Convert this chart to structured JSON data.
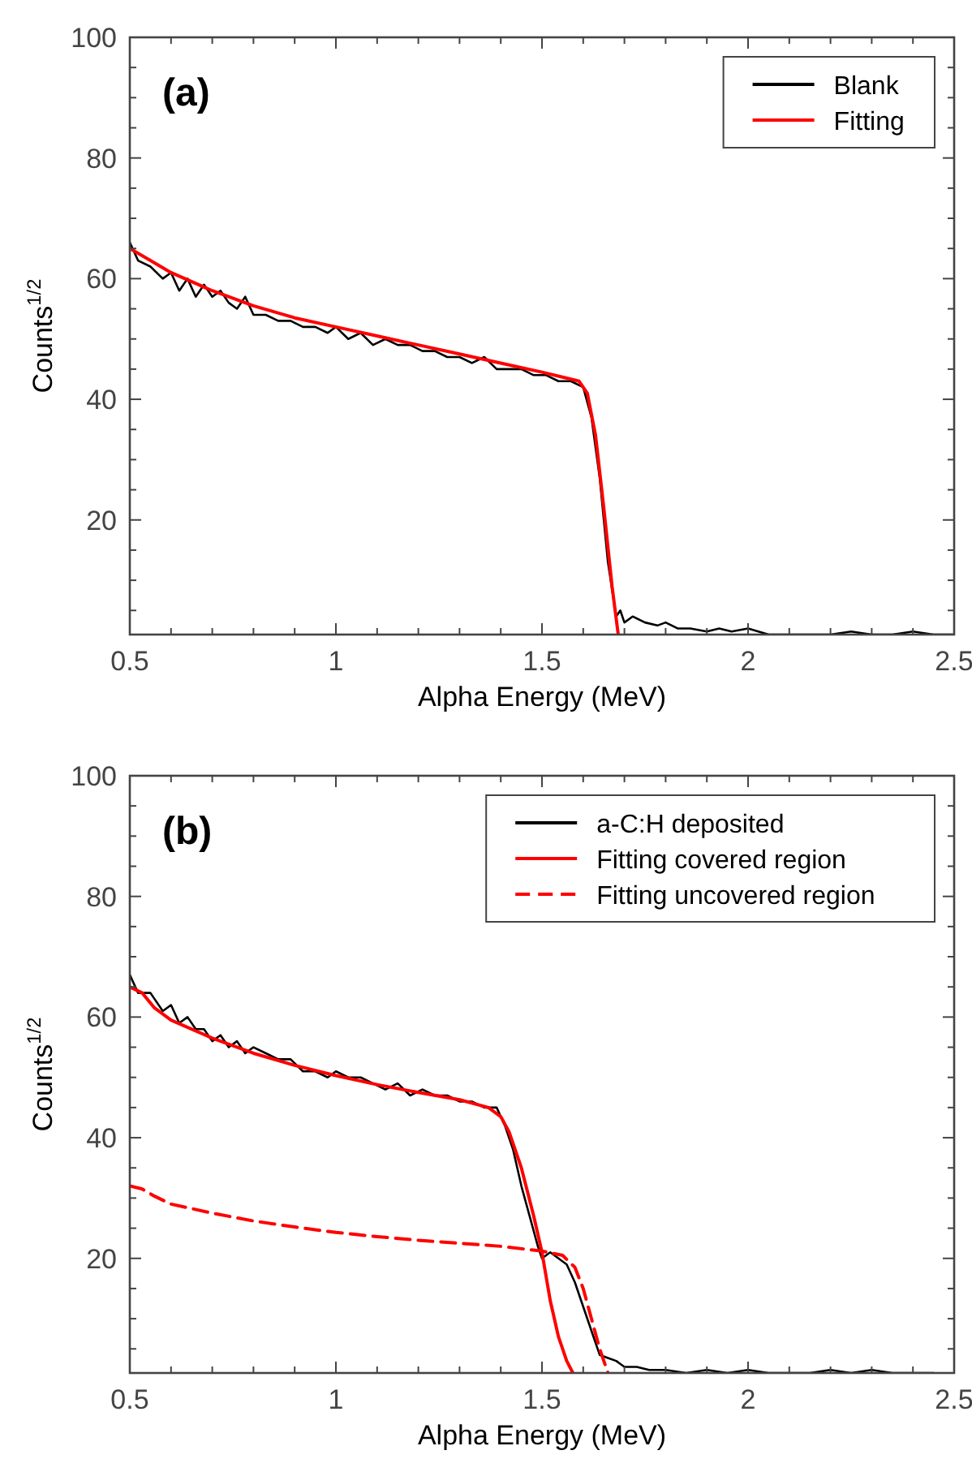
{
  "chart_data": [
    {
      "type": "line",
      "xlabel": "Alpha Energy (MeV)",
      "ylabel": "Counts$^{1/2}$",
      "annotations": [
        "(a)"
      ],
      "legend": "top right",
      "grid": false,
      "xlim": [
        0.5,
        2.5
      ],
      "ylim": [
        1,
        100
      ],
      "xticks": [
        0.5,
        {
          "value": 0.6,
          "label": null
        },
        {
          "value": 0.7,
          "label": null
        },
        {
          "value": 0.8,
          "label": null
        },
        {
          "value": 0.9,
          "label": null
        },
        1,
        {
          "value": 1.1,
          "label": null
        },
        {
          "value": 1.2,
          "label": null
        },
        {
          "value": 1.3,
          "label": null
        },
        {
          "value": 1.4,
          "label": null
        },
        1.5,
        {
          "value": 1.6,
          "label": null
        },
        {
          "value": 1.7,
          "label": null
        },
        {
          "value": 1.8,
          "label": null
        },
        {
          "value": 1.9,
          "label": null
        },
        2,
        {
          "value": 2.1,
          "label": null
        },
        {
          "value": 2.2,
          "label": null
        },
        {
          "value": 2.3,
          "label": null
        },
        {
          "value": 2.4,
          "label": null
        },
        2.5
      ],
      "yticks": [
        {
          "value": 5,
          "label": null
        },
        {
          "value": 10,
          "label": null
        },
        {
          "value": 15,
          "label": null
        },
        20,
        {
          "value": 25,
          "label": null
        },
        {
          "value": 30,
          "label": null
        },
        {
          "value": 35,
          "label": null
        },
        40,
        {
          "value": 45,
          "label": null
        },
        {
          "value": 50,
          "label": null
        },
        {
          "value": 55,
          "label": null
        },
        60,
        {
          "value": 65,
          "label": null
        },
        {
          "value": 70,
          "label": null
        },
        {
          "value": 75,
          "label": null
        },
        80,
        {
          "value": 85,
          "label": null
        },
        {
          "value": 90,
          "label": null
        },
        {
          "value": 95,
          "label": null
        },
        100
      ],
      "series": [
        {
          "name": "Blank",
          "color": "#000000",
          "line_style": "solid",
          "x": [
            0.5,
            0.52,
            0.55,
            0.58,
            0.6,
            0.62,
            0.64,
            0.66,
            0.68,
            0.7,
            0.72,
            0.74,
            0.76,
            0.78,
            0.8,
            0.83,
            0.86,
            0.89,
            0.92,
            0.95,
            0.98,
            1.0,
            1.03,
            1.06,
            1.09,
            1.12,
            1.15,
            1.18,
            1.21,
            1.24,
            1.27,
            1.3,
            1.33,
            1.36,
            1.39,
            1.42,
            1.45,
            1.48,
            1.51,
            1.54,
            1.57,
            1.6,
            1.62,
            1.64,
            1.66,
            1.68,
            1.69,
            1.7,
            1.72,
            1.75,
            1.78,
            1.8,
            1.83,
            1.86,
            1.9,
            1.93,
            1.96,
            2.0,
            2.05,
            2.1,
            2.15,
            2.2,
            2.25,
            2.3,
            2.35,
            2.4,
            2.45,
            2.5
          ],
          "values": [
            66,
            63,
            62,
            60,
            61,
            58,
            60,
            57,
            59,
            57,
            58,
            56,
            55,
            57,
            54,
            54,
            53,
            53,
            52,
            52,
            51,
            52,
            50,
            51,
            49,
            50,
            49,
            49,
            48,
            48,
            47,
            47,
            46,
            47,
            45,
            45,
            45,
            44,
            44,
            43,
            43,
            42,
            37,
            27,
            13,
            4,
            5,
            3,
            4,
            3,
            2.5,
            3,
            2,
            2,
            1.5,
            2,
            1.5,
            2,
            1,
            1,
            1,
            1,
            1.5,
            1,
            1,
            1.5,
            1,
            1
          ]
        },
        {
          "name": "Fitting",
          "color": "#ff0000",
          "line_style": "solid",
          "x": [
            0.5,
            0.55,
            0.6,
            0.7,
            0.8,
            0.9,
            1.0,
            1.1,
            1.2,
            1.3,
            1.4,
            1.5,
            1.56,
            1.59,
            1.61,
            1.63,
            1.65,
            1.67,
            1.685
          ],
          "values": [
            65,
            63,
            61,
            58,
            55.5,
            53.5,
            52,
            50.5,
            49,
            47.5,
            46,
            44.5,
            43.5,
            43,
            41,
            34,
            22,
            9,
            1
          ]
        }
      ]
    },
    {
      "type": "line",
      "xlabel": "Alpha Energy (MeV)",
      "ylabel": "Counts$^{1/2}$",
      "annotations": [
        "(b)"
      ],
      "legend": "top right",
      "grid": false,
      "xlim": [
        0.5,
        2.5
      ],
      "ylim": [
        1,
        100
      ],
      "xticks": [
        0.5,
        {
          "value": 0.6,
          "label": null
        },
        {
          "value": 0.7,
          "label": null
        },
        {
          "value": 0.8,
          "label": null
        },
        {
          "value": 0.9,
          "label": null
        },
        1,
        {
          "value": 1.1,
          "label": null
        },
        {
          "value": 1.2,
          "label": null
        },
        {
          "value": 1.3,
          "label": null
        },
        {
          "value": 1.4,
          "label": null
        },
        1.5,
        {
          "value": 1.6,
          "label": null
        },
        {
          "value": 1.7,
          "label": null
        },
        {
          "value": 1.8,
          "label": null
        },
        {
          "value": 1.9,
          "label": null
        },
        2,
        {
          "value": 2.1,
          "label": null
        },
        {
          "value": 2.2,
          "label": null
        },
        {
          "value": 2.3,
          "label": null
        },
        {
          "value": 2.4,
          "label": null
        },
        2.5
      ],
      "yticks": [
        {
          "value": 5,
          "label": null
        },
        {
          "value": 10,
          "label": null
        },
        {
          "value": 15,
          "label": null
        },
        20,
        {
          "value": 25,
          "label": null
        },
        {
          "value": 30,
          "label": null
        },
        {
          "value": 35,
          "label": null
        },
        40,
        {
          "value": 45,
          "label": null
        },
        {
          "value": 50,
          "label": null
        },
        {
          "value": 55,
          "label": null
        },
        60,
        {
          "value": 65,
          "label": null
        },
        {
          "value": 70,
          "label": null
        },
        {
          "value": 75,
          "label": null
        },
        80,
        {
          "value": 85,
          "label": null
        },
        {
          "value": 90,
          "label": null
        },
        {
          "value": 95,
          "label": null
        },
        100
      ],
      "series": [
        {
          "name": "a-C:H deposited",
          "color": "#000000",
          "line_style": "solid",
          "x": [
            0.5,
            0.52,
            0.55,
            0.58,
            0.6,
            0.62,
            0.64,
            0.66,
            0.68,
            0.7,
            0.72,
            0.74,
            0.76,
            0.78,
            0.8,
            0.83,
            0.86,
            0.89,
            0.92,
            0.95,
            0.98,
            1.0,
            1.03,
            1.06,
            1.09,
            1.12,
            1.15,
            1.18,
            1.21,
            1.24,
            1.27,
            1.3,
            1.33,
            1.36,
            1.39,
            1.41,
            1.43,
            1.45,
            1.47,
            1.49,
            1.5,
            1.52,
            1.54,
            1.56,
            1.58,
            1.6,
            1.62,
            1.64,
            1.66,
            1.68,
            1.7,
            1.73,
            1.76,
            1.8,
            1.85,
            1.9,
            1.95,
            2.0,
            2.05,
            2.1,
            2.15,
            2.2,
            2.25,
            2.3,
            2.35,
            2.4,
            2.45
          ],
          "values": [
            67,
            64,
            64,
            61,
            62,
            59,
            60,
            58,
            58,
            56,
            57,
            55,
            56,
            54,
            55,
            54,
            53,
            53,
            51,
            51,
            50,
            51,
            50,
            50,
            49,
            48,
            49,
            47,
            48,
            47,
            47,
            46,
            46,
            45,
            45,
            42,
            38,
            32,
            27,
            22,
            20,
            21,
            20,
            19,
            16,
            12,
            8,
            4,
            3.5,
            3,
            2,
            2,
            1.5,
            1.5,
            1,
            1.5,
            1,
            1.5,
            1,
            1,
            1,
            1.5,
            1,
            1.5,
            1,
            1,
            1
          ]
        },
        {
          "name": "Fitting covered region",
          "color": "#ff0000",
          "line_style": "solid",
          "x": [
            0.5,
            0.53,
            0.56,
            0.6,
            0.7,
            0.8,
            0.9,
            1.0,
            1.1,
            1.2,
            1.3,
            1.37,
            1.4,
            1.42,
            1.45,
            1.48,
            1.5,
            1.52,
            1.54,
            1.56,
            1.575
          ],
          "values": [
            65,
            64,
            61.5,
            59.5,
            56.5,
            54,
            52,
            50.3,
            48.8,
            47.5,
            46.3,
            45,
            43.5,
            41,
            35,
            27,
            21,
            13,
            7,
            3,
            1
          ]
        },
        {
          "name": "Fitting uncovered region",
          "color": "#ff0000",
          "line_style": "dashed",
          "x": [
            0.5,
            0.53,
            0.56,
            0.6,
            0.7,
            0.8,
            0.9,
            1.0,
            1.1,
            1.2,
            1.3,
            1.4,
            1.5,
            1.55,
            1.58,
            1.6,
            1.62,
            1.64,
            1.66
          ],
          "values": [
            32,
            31.5,
            30.3,
            29,
            27.5,
            26.2,
            25.2,
            24.3,
            23.6,
            23,
            22.5,
            22,
            21.2,
            20.5,
            18.5,
            15,
            10,
            5,
            1
          ]
        }
      ]
    }
  ]
}
